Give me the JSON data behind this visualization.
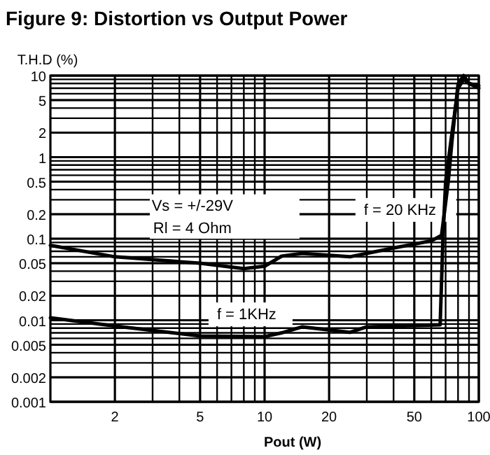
{
  "chart_data": {
    "type": "line",
    "title": "Figure 9: Distortion  vs Output Power",
    "xlabel": "Pout (W)",
    "ylabel": "T.H.D (%)",
    "log": "xy",
    "grid": true,
    "line_style": "solid",
    "xlim": [
      1,
      100
    ],
    "xticks": [
      2,
      5,
      10,
      20,
      50,
      100
    ],
    "ylim": [
      0.001,
      10
    ],
    "yticks": [
      0.001,
      0.002,
      0.005,
      0.01,
      0.02,
      0.05,
      0.1,
      0.2,
      0.5,
      1,
      2,
      5,
      10
    ],
    "annotations": [
      "Vs = +/-29V",
      "Rl = 4 Ohm"
    ],
    "series": [
      {
        "name": "f = 20 KHz",
        "color": "#000000",
        "x": [
          1,
          2,
          5,
          8,
          10,
          12,
          15,
          25,
          40,
          60,
          67,
          72,
          75,
          80,
          85,
          90,
          100
        ],
        "values": [
          0.083,
          0.06,
          0.05,
          0.043,
          0.046,
          0.061,
          0.066,
          0.06,
          0.077,
          0.094,
          0.11,
          0.5,
          1.6,
          7.9,
          10,
          8,
          7.5
        ]
      },
      {
        "name": "f = 1KHz",
        "color": "#000000",
        "x": [
          1,
          2,
          5,
          10,
          12,
          15,
          25,
          30,
          66,
          68,
          70,
          75,
          80,
          85,
          90,
          100
        ],
        "values": [
          0.0107,
          0.0085,
          0.0064,
          0.0063,
          0.007,
          0.0083,
          0.0071,
          0.0083,
          0.0088,
          0.1,
          0.5,
          2,
          7,
          9,
          8,
          7
        ]
      }
    ]
  }
}
